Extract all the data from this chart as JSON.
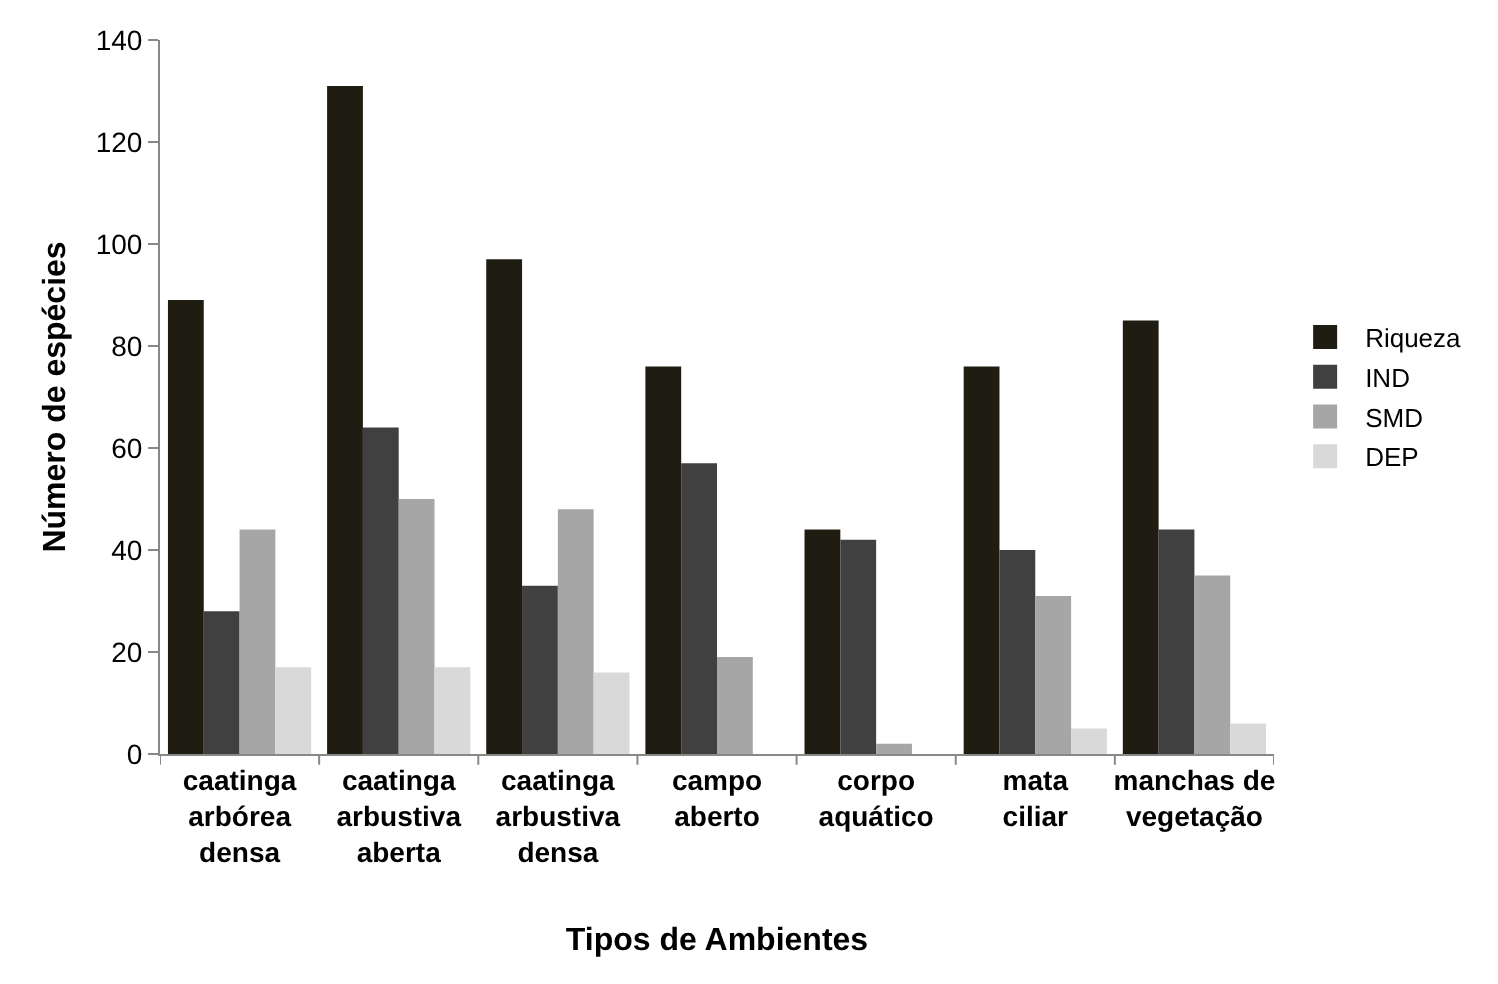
{
  "chart_data": {
    "type": "bar",
    "xlabel": "Tipos de Ambientes",
    "ylabel": "Número de espécies",
    "categories": [
      "caatinga\narbórea\ndensa",
      "caatinga\narbustiva\naberta",
      "caatinga\narbustiva\ndensa",
      "campo\naberto",
      "corpo\naquático",
      "mata\nciliar",
      "manchas de\nvegetação"
    ],
    "series": [
      {
        "name": "Riqueza",
        "color": "#1f1c12",
        "values": [
          89,
          131,
          97,
          76,
          44,
          76,
          85
        ]
      },
      {
        "name": "IND",
        "color": "#404040",
        "values": [
          28,
          64,
          33,
          57,
          42,
          40,
          44
        ]
      },
      {
        "name": "SMD",
        "color": "#a6a6a6",
        "values": [
          44,
          50,
          48,
          19,
          2,
          31,
          35
        ]
      },
      {
        "name": "DEP",
        "color": "#d9d9d9",
        "values": [
          17,
          17,
          16,
          0,
          0,
          5,
          6
        ]
      }
    ],
    "ylim": [
      0,
      140
    ],
    "yticks": [
      0,
      20,
      40,
      60,
      80,
      100,
      120,
      140
    ],
    "legend": "right"
  }
}
